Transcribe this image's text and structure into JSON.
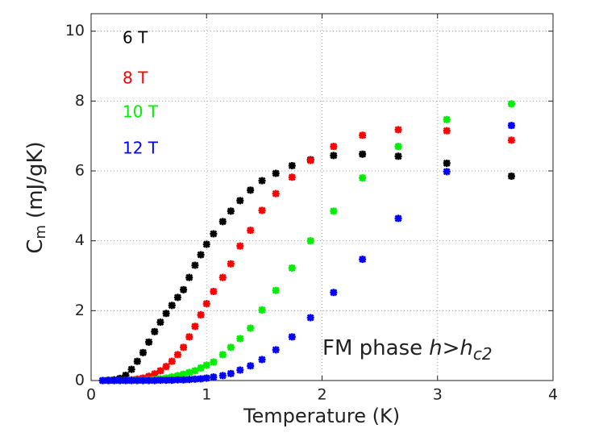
{
  "chart_data": {
    "type": "scatter",
    "xlabel": "Temperature (K)",
    "ylabel": "C",
    "ylabel_sub": "m",
    "ylabel_unit": "(mJ/gK)",
    "annotation": "FM phase",
    "annotation_math": "h>h",
    "annotation_sub": "c2",
    "xlim": [
      0,
      4
    ],
    "ylim": [
      0,
      10.5
    ],
    "xticks": [
      0,
      1,
      2,
      3,
      4
    ],
    "yticks": [
      0,
      2,
      4,
      6,
      8,
      10
    ],
    "grid": true,
    "legend": "upper left",
    "x": [
      0.1,
      0.15,
      0.2,
      0.25,
      0.3,
      0.35,
      0.4,
      0.45,
      0.5,
      0.55,
      0.6,
      0.65,
      0.7,
      0.75,
      0.8,
      0.85,
      0.9,
      0.95,
      1.0,
      1.06,
      1.14,
      1.21,
      1.29,
      1.38,
      1.48,
      1.6,
      1.74,
      1.9,
      2.1,
      2.35,
      2.66,
      3.08,
      3.64
    ],
    "series": [
      {
        "name": "6 T",
        "color": "#000000",
        "values": [
          0,
          0.01,
          0.02,
          0.06,
          0.15,
          0.32,
          0.55,
          0.8,
          1.1,
          1.4,
          1.67,
          1.92,
          2.15,
          2.38,
          2.6,
          2.95,
          3.3,
          3.6,
          3.9,
          4.2,
          4.55,
          4.85,
          5.15,
          5.45,
          5.72,
          5.93,
          6.15,
          6.32,
          6.44,
          6.48,
          6.42,
          6.22,
          5.85
        ]
      },
      {
        "name": "8 T",
        "color": "#ff0000",
        "values": [
          0,
          0,
          0,
          0.01,
          0.01,
          0.02,
          0.04,
          0.07,
          0.12,
          0.19,
          0.28,
          0.4,
          0.55,
          0.74,
          0.95,
          1.25,
          1.55,
          1.88,
          2.2,
          2.55,
          2.95,
          3.34,
          3.85,
          4.3,
          4.87,
          5.35,
          5.82,
          6.3,
          6.7,
          7.02,
          7.18,
          7.15,
          6.88
        ]
      },
      {
        "name": "10 T",
        "color": "#00ee00",
        "values": [
          0,
          0,
          0,
          0,
          0,
          0,
          0.01,
          0.01,
          0.02,
          0.03,
          0.05,
          0.07,
          0.1,
          0.14,
          0.18,
          0.23,
          0.28,
          0.36,
          0.44,
          0.53,
          0.74,
          0.95,
          1.2,
          1.5,
          2.02,
          2.58,
          3.22,
          4.0,
          4.85,
          5.8,
          6.7,
          7.47,
          7.92
        ]
      },
      {
        "name": "12 T",
        "color": "#0000ff",
        "values": [
          0,
          0,
          0,
          0,
          0,
          0,
          0,
          0,
          0,
          0,
          0.01,
          0.01,
          0.01,
          0.02,
          0.02,
          0.03,
          0.04,
          0.05,
          0.07,
          0.1,
          0.14,
          0.2,
          0.3,
          0.42,
          0.6,
          0.88,
          1.25,
          1.8,
          2.52,
          3.47,
          4.64,
          5.98,
          7.3
        ]
      }
    ]
  }
}
